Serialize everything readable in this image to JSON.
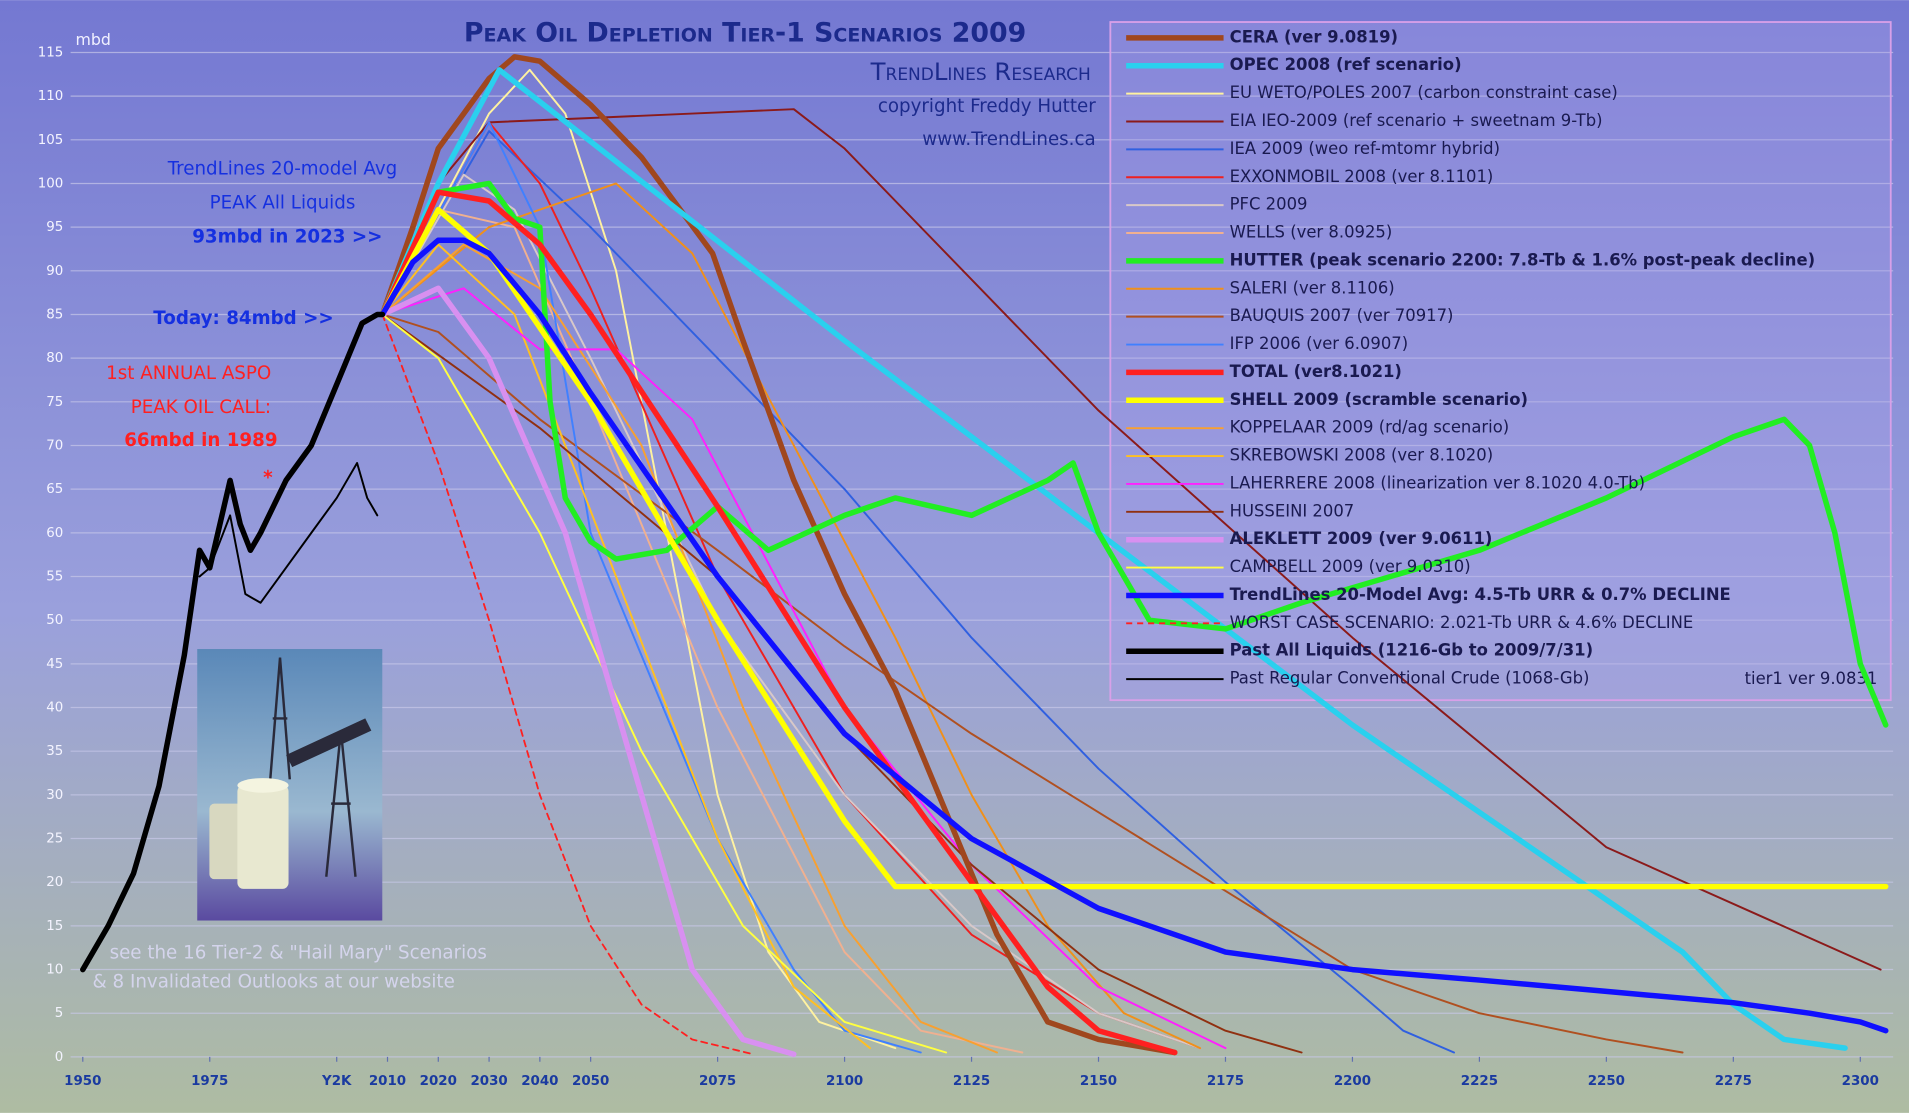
{
  "chart_data": {
    "type": "line",
    "title": "Peak Oil Depletion Tier-1 Scenarios 2009",
    "subtitle": "TrendLines Research",
    "copyright": "copyright Freddy Hutter",
    "website": "www.TrendLines.ca",
    "y_unit": "mbd",
    "version_note": "tier1 ver 9.0831",
    "annotations": [
      "TrendLines 20-model Avg",
      "PEAK All Liquids",
      "93mbd in 2023 >>",
      "Today: 84mbd >>",
      "1st ANNUAL ASPO",
      "PEAK OIL CALL:",
      "66mbd in 1989",
      "*",
      "see the 16 Tier-2 & \"Hail Mary\" Scenarios",
      "& 8 Invalidated Outlooks at our website"
    ],
    "xlim": [
      1950,
      2300
    ],
    "xticks": [
      1950,
      1975,
      {
        "value": 2000,
        "label": "Y2K"
      },
      2010,
      2020,
      2030,
      2040,
      2050,
      2075,
      2100,
      2125,
      2150,
      2175,
      2200,
      2225,
      2250,
      2275,
      2300
    ],
    "ylim": [
      0,
      115
    ],
    "yticks": [
      0,
      5,
      10,
      15,
      20,
      25,
      30,
      35,
      40,
      45,
      50,
      55,
      60,
      65,
      70,
      75,
      80,
      85,
      90,
      95,
      100,
      105,
      110,
      115
    ],
    "grid": true,
    "legend": "top-right",
    "series": [
      {
        "name": "CERA  (ver 9.0819)",
        "color": "#a0471e",
        "style": "thick",
        "x": [
          2009,
          2015,
          2020,
          2025,
          2030,
          2035,
          2040,
          2050,
          2060,
          2074,
          2080,
          2090,
          2100,
          2110,
          2120,
          2130,
          2140,
          2150,
          2165
        ],
        "values": [
          85,
          95,
          104,
          108,
          112,
          114.5,
          114,
          109,
          103,
          92,
          82,
          66,
          53,
          42,
          28,
          14,
          4,
          2,
          0.5
        ]
      },
      {
        "name": "OPEC 2008 (ref scenario)",
        "color": "#2ad0ee",
        "style": "thick",
        "x": [
          2009,
          2020,
          2032,
          2100,
          2150,
          2200,
          2250,
          2265,
          2275,
          2285,
          2297
        ],
        "values": [
          85,
          100,
          113,
          82,
          60,
          38,
          18,
          12,
          6,
          2,
          1
        ]
      },
      {
        "name": "EU WETO/POLES 2007  (carbon constraint case)",
        "color": "#fff2a0",
        "style": "thin",
        "x": [
          2009,
          2030,
          2038,
          2045,
          2055,
          2065,
          2075,
          2085,
          2095,
          2110
        ],
        "values": [
          85,
          108,
          113,
          108,
          90,
          60,
          30,
          12,
          4,
          1
        ]
      },
      {
        "name": "EIA IEO-2009  (ref scenario + sweetnam  9-Tb)",
        "color": "#8b1a1a",
        "style": "thin",
        "x": [
          2009,
          2020,
          2030,
          2050,
          2070,
          2090,
          2100,
          2150,
          2200,
          2250,
          2304
        ],
        "values": [
          85,
          100,
          107,
          107.5,
          108,
          108.5,
          104,
          74,
          48,
          24,
          10
        ]
      },
      {
        "name": "IEA 2009  (weo ref-mtomr hybrid)",
        "color": "#3060e0",
        "style": "thin",
        "x": [
          2009,
          2030,
          2050,
          2075,
          2100,
          2125,
          2150,
          2175,
          2200,
          2210,
          2220
        ],
        "values": [
          85,
          106,
          95,
          80,
          65,
          48,
          33,
          20,
          8,
          3,
          0.5
        ]
      },
      {
        "name": "EXXONMOBIL 2008  (ver 8.1101)",
        "color": "#ee2020",
        "style": "thin",
        "x": [
          2009,
          2030,
          2040,
          2050,
          2075,
          2100,
          2125,
          2150,
          2170
        ],
        "values": [
          85,
          107,
          100,
          88,
          55,
          30,
          14,
          5,
          1
        ]
      },
      {
        "name": "PFC 2009",
        "color": "#d8c8c8",
        "style": "thin",
        "x": [
          2009,
          2025,
          2035,
          2050,
          2075,
          2100,
          2125,
          2150,
          2170
        ],
        "values": [
          85,
          101,
          97,
          80,
          50,
          30,
          15,
          5,
          1
        ]
      },
      {
        "name": "WELLS  (ver 8.0925)",
        "color": "#f0b090",
        "style": "thin",
        "x": [
          2009,
          2020,
          2035,
          2050,
          2075,
          2100,
          2115,
          2135
        ],
        "values": [
          85,
          97,
          95,
          75,
          40,
          12,
          3,
          0.5
        ]
      },
      {
        "name": "HUTTER  (peak scenario 2200:  7.8-Tb & 1.6% post-peak decline)",
        "color": "#22ee22",
        "style": "thick",
        "x": [
          2009,
          2020,
          2030,
          2035,
          2040,
          2042,
          2045,
          2050,
          2055,
          2065,
          2075,
          2085,
          2100,
          2110,
          2125,
          2140,
          2145,
          2150,
          2160,
          2175,
          2190,
          2225,
          2250,
          2275,
          2285,
          2290,
          2295,
          2300,
          2305
        ],
        "values": [
          85,
          99,
          100,
          96,
          95,
          75,
          64,
          59,
          57,
          58,
          63,
          58,
          62,
          64,
          62,
          66,
          68,
          60,
          50,
          49,
          52,
          58,
          64,
          71,
          73,
          70,
          60,
          45,
          38
        ]
      },
      {
        "name": "SALERI  (ver 8.1106)",
        "color": "#f0901a",
        "style": "thin",
        "x": [
          2009,
          2030,
          2055,
          2070,
          2090,
          2110,
          2125,
          2140,
          2155,
          2170
        ],
        "values": [
          85,
          95,
          100,
          92,
          70,
          48,
          30,
          15,
          5,
          1
        ]
      },
      {
        "name": "BAUQUIS 2007  (ver 70917)",
        "color": "#b05020",
        "style": "thin",
        "x": [
          2009,
          2020,
          2040,
          2075,
          2100,
          2125,
          2150,
          2175,
          2200,
          2225,
          2250,
          2265
        ],
        "values": [
          85,
          83,
          73,
          58,
          47,
          37,
          28,
          19,
          10,
          5,
          2,
          0.5
        ]
      },
      {
        "name": "IFP 2006  (ver 6.0907)",
        "color": "#4080ff",
        "style": "thin",
        "x": [
          2009,
          2030,
          2040,
          2050,
          2075,
          2090,
          2100,
          2115
        ],
        "values": [
          85,
          107,
          95,
          60,
          25,
          10,
          3,
          0.5
        ]
      },
      {
        "name": "TOTAL  (ver8.1021)",
        "color": "#ff2020",
        "style": "thick",
        "x": [
          2009,
          2020,
          2030,
          2040,
          2050,
          2075,
          2100,
          2125,
          2140,
          2150,
          2165
        ],
        "values": [
          85,
          99,
          98,
          93,
          85,
          63,
          40,
          20,
          8,
          3,
          0.5
        ]
      },
      {
        "name": "SHELL 2009  (scramble scenario)",
        "color": "#ffff00",
        "style": "thick",
        "x": [
          2009,
          2020,
          2030,
          2050,
          2075,
          2100,
          2110,
          2150,
          2200,
          2250,
          2305
        ],
        "values": [
          85,
          97,
          92,
          75,
          50,
          27,
          19.5,
          19.5,
          19.5,
          19.5,
          19.5
        ]
      },
      {
        "name": "KOPPELAAR 2009  (rd/ag scenario)",
        "color": "#f8a030",
        "style": "thin",
        "x": [
          2009,
          2025,
          2040,
          2060,
          2080,
          2100,
          2115,
          2130
        ],
        "values": [
          85,
          93,
          88,
          70,
          40,
          15,
          4,
          0.5
        ]
      },
      {
        "name": "SKREBOWSKI 2008  (ver 8.1020)",
        "color": "#ffc020",
        "style": "thin",
        "x": [
          2009,
          2020,
          2035,
          2055,
          2075,
          2090,
          2105
        ],
        "values": [
          85,
          93,
          85,
          55,
          25,
          8,
          1
        ]
      },
      {
        "name": "LAHERRERE 2008  (linearization ver 8.1020  4.0-Tb)",
        "color": "#ff20ff",
        "style": "thin",
        "x": [
          2009,
          2025,
          2040,
          2055,
          2070,
          2100,
          2125,
          2150,
          2175
        ],
        "values": [
          85,
          88,
          81,
          81,
          73,
          40,
          22,
          8,
          1
        ]
      },
      {
        "name": "HUSSEINI  2007",
        "color": "#903010",
        "style": "thin",
        "x": [
          2009,
          2040,
          2075,
          2100,
          2125,
          2150,
          2175,
          2190
        ],
        "values": [
          85,
          72,
          55,
          37,
          22,
          10,
          3,
          0.5
        ]
      },
      {
        "name": "ALEKLETT 2009  (ver 9.0611)",
        "color": "#d890f0",
        "style": "thick",
        "x": [
          2009,
          2020,
          2030,
          2045,
          2060,
          2070,
          2080,
          2090
        ],
        "values": [
          85,
          88,
          80,
          60,
          30,
          10,
          2,
          0.3
        ]
      },
      {
        "name": "CAMPBELL 2009  (ver 9.0310)",
        "color": "#ffff40",
        "style": "thin",
        "x": [
          2009,
          2020,
          2040,
          2060,
          2080,
          2100,
          2120
        ],
        "values": [
          85,
          80,
          60,
          35,
          15,
          4,
          0.5
        ]
      },
      {
        "name": "TrendLines 20-Model Avg:  4.5-Tb URR & 0.7% DECLINE",
        "color": "#1010ff",
        "style": "thick",
        "x": [
          2009,
          2015,
          2020,
          2025,
          2030,
          2040,
          2050,
          2075,
          2100,
          2125,
          2150,
          2175,
          2200,
          2225,
          2250,
          2275,
          2290,
          2300,
          2305
        ],
        "values": [
          85,
          91,
          93.5,
          93.5,
          92,
          85,
          76,
          55,
          37,
          25,
          17,
          12,
          10,
          8.8,
          7.5,
          6.2,
          5,
          4,
          3
        ]
      },
      {
        "name": "WORST CASE SCENARIO:  2.021-Tb URR & 4.6% DECLINE",
        "color": "#ff2020",
        "style": "dashed",
        "x": [
          2009,
          2020,
          2030,
          2040,
          2050,
          2060,
          2070,
          2082
        ],
        "values": [
          85,
          68,
          50,
          30,
          15,
          6,
          2,
          0.3
        ]
      },
      {
        "name": "Past All Liquids  (1216-Gb to 2009/7/31)",
        "color": "#000000",
        "style": "thick",
        "x": [
          1950,
          1955,
          1960,
          1965,
          1970,
          1973,
          1975,
          1979,
          1981,
          1983,
          1985,
          1990,
          1995,
          2000,
          2005,
          2008,
          2009
        ],
        "values": [
          10,
          15,
          21,
          31,
          46,
          58,
          56,
          66,
          61,
          58,
          60,
          66,
          70,
          77,
          84,
          85,
          85
        ]
      },
      {
        "name": "Past Regular Conventional Crude  (1068-Gb)",
        "color": "#000000",
        "style": "thin",
        "x": [
          1973,
          1975,
          1979,
          1982,
          1985,
          1990,
          1995,
          2000,
          2004,
          2006,
          2008
        ],
        "values": [
          55,
          56,
          62,
          53,
          52,
          56,
          60,
          64,
          68,
          64,
          62
        ]
      }
    ]
  }
}
